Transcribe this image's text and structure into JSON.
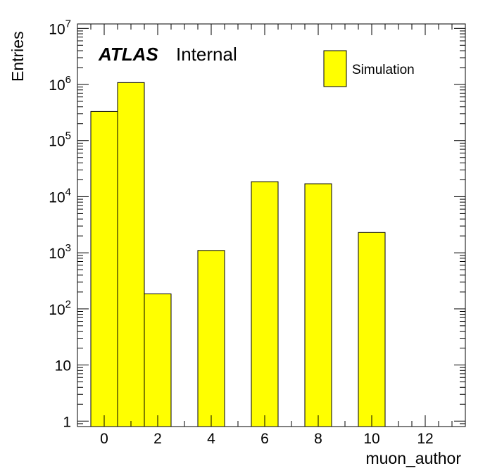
{
  "chart_data": {
    "type": "bar",
    "histogram": true,
    "title": "",
    "xlabel": "muon_author",
    "ylabel": "Entries",
    "y_scale": "log",
    "xlim": [
      -1,
      13.5
    ],
    "ylim": [
      0.8,
      12000000
    ],
    "bin_edges": [
      -0.5,
      0.5,
      1.5,
      2.5,
      3.5,
      4.5,
      5.5,
      6.5,
      7.5,
      8.5,
      9.5,
      10.5,
      11.5,
      12.5
    ],
    "values": [
      330000,
      1080000,
      185,
      0,
      1100,
      0,
      18500,
      0,
      17000,
      0,
      2300,
      0,
      0
    ],
    "bar_color": "#ffff00",
    "x_ticks": [
      0,
      2,
      4,
      6,
      8,
      10,
      12
    ],
    "y_ticks": [
      {
        "value": 1,
        "base": "1",
        "exp": ""
      },
      {
        "value": 10,
        "base": "10",
        "exp": ""
      },
      {
        "value": 100,
        "base": "10",
        "exp": "2"
      },
      {
        "value": 1000,
        "base": "10",
        "exp": "3"
      },
      {
        "value": 10000,
        "base": "10",
        "exp": "4"
      },
      {
        "value": 100000,
        "base": "10",
        "exp": "5"
      },
      {
        "value": 1000000,
        "base": "10",
        "exp": "6"
      },
      {
        "value": 10000000,
        "base": "10",
        "exp": "7"
      }
    ],
    "legend": {
      "entries": [
        {
          "label": "Simulation",
          "color": "#ffff00"
        }
      ],
      "position": "top-right"
    },
    "annotations": {
      "atlas": "ATLAS",
      "status": "Internal"
    },
    "grid": false
  }
}
